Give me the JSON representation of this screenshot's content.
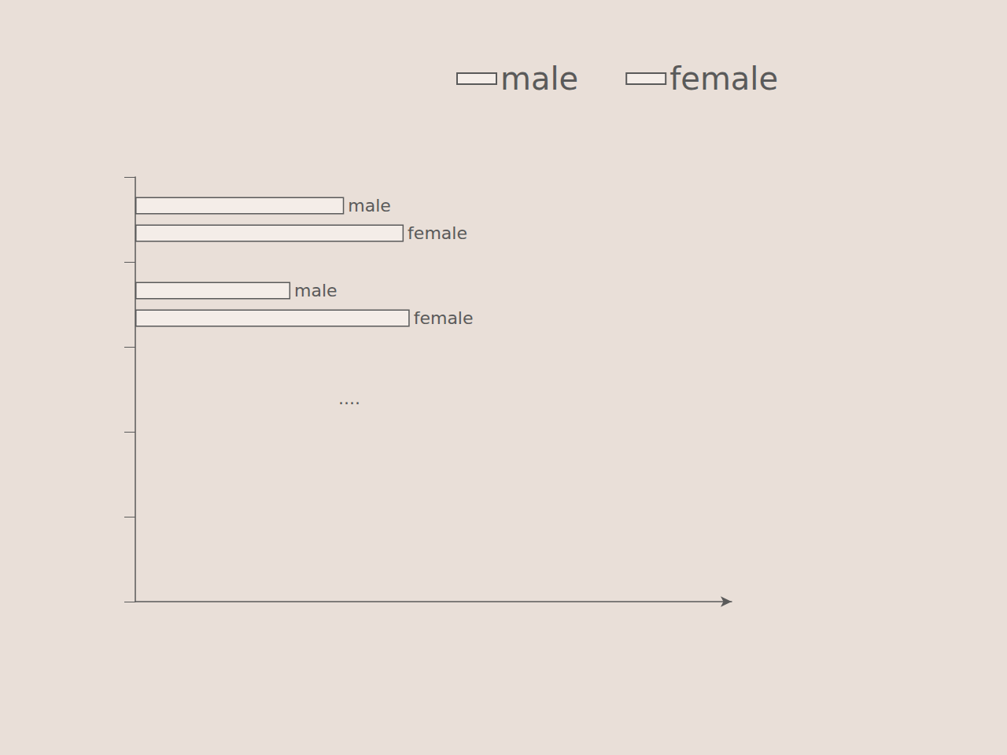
{
  "chart_data": {
    "type": "bar",
    "orientation": "horizontal",
    "categories": [
      null,
      null,
      null,
      null,
      null
    ],
    "series": [
      {
        "name": "male",
        "color": "#5a5a5a",
        "values": [
          35,
          26,
          null,
          null,
          null
        ],
        "labels": [
          "male",
          "male",
          null,
          null,
          null
        ]
      },
      {
        "name": "female",
        "color": "#5a5a5a",
        "values": [
          45,
          46,
          null,
          null,
          null
        ],
        "labels": [
          "female",
          "female",
          null,
          null,
          null
        ]
      }
    ],
    "xlim": [
      0,
      100
    ],
    "tick_labels": false,
    "grid": false,
    "legend": "top",
    "annotations": [
      "...."
    ]
  }
}
